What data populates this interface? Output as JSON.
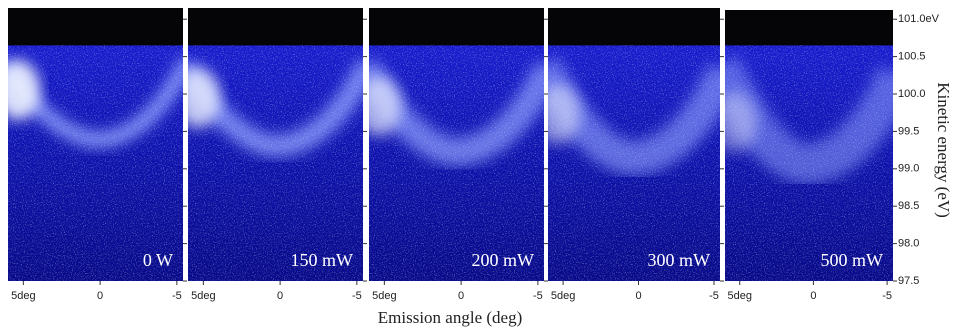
{
  "chart_data": {
    "type": "image-panels",
    "xlabel": "Emission angle (deg)",
    "ylabel": "Kinetic energy (eV)",
    "panels": [
      {
        "label": "0 W"
      },
      {
        "label": "150 mW"
      },
      {
        "label": "200 mW"
      },
      {
        "label": "300 mW"
      },
      {
        "label": "500 mW"
      }
    ],
    "xlim": [
      6,
      -5.4
    ],
    "xticks": [
      {
        "value": 5,
        "label": "5deg"
      },
      0,
      -5
    ],
    "ylim": [
      97.5,
      101.15
    ],
    "yticks": [
      {
        "value": 101,
        "label": "101.0eV"
      },
      100.5,
      {
        "value": 100,
        "label": "100.0"
      },
      99.5,
      {
        "value": 99,
        "label": "99.0"
      },
      98.5,
      {
        "value": 98,
        "label": "98.0"
      },
      97.5
    ]
  }
}
